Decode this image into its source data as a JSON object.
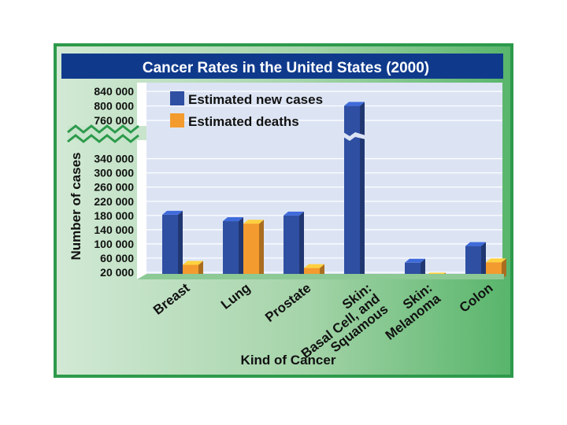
{
  "chart_data": {
    "type": "bar",
    "title": "Cancer Rates in the United States (2000)",
    "xlabel": "Kind of Cancer",
    "ylabel": "Number of cases",
    "categories": [
      {
        "lines": [
          "Breast"
        ]
      },
      {
        "lines": [
          "Lung"
        ]
      },
      {
        "lines": [
          "Prostate"
        ]
      },
      {
        "lines": [
          "Skin:",
          "Basal Cell, and",
          "Squamous"
        ]
      },
      {
        "lines": [
          "Skin:",
          "Melanoma"
        ]
      },
      {
        "lines": [
          "Colon"
        ]
      }
    ],
    "series": [
      {
        "name": "Estimated new cases",
        "color": "#2f4fa2",
        "values": [
          182000,
          164000,
          180000,
          800000,
          47000,
          94000
        ]
      },
      {
        "name": "Estimated deaths",
        "color": "#f39b2e",
        "values": [
          41000,
          157000,
          32000,
          2000,
          8000,
          48000
        ]
      }
    ],
    "y_ticks_lower": [
      "20 000",
      "60 000",
      "100 000",
      "140 000",
      "180 000",
      "220 000",
      "260 000",
      "300 000",
      "340 000"
    ],
    "y_ticks_upper": [
      "760 000",
      "800 000",
      "840 000"
    ],
    "legend_position": "top-left",
    "axis_break": true
  },
  "colors": {
    "title_bar": "#0f3a8c",
    "frame": "#2c9a4b",
    "plot_bg": "#dce4f4"
  }
}
